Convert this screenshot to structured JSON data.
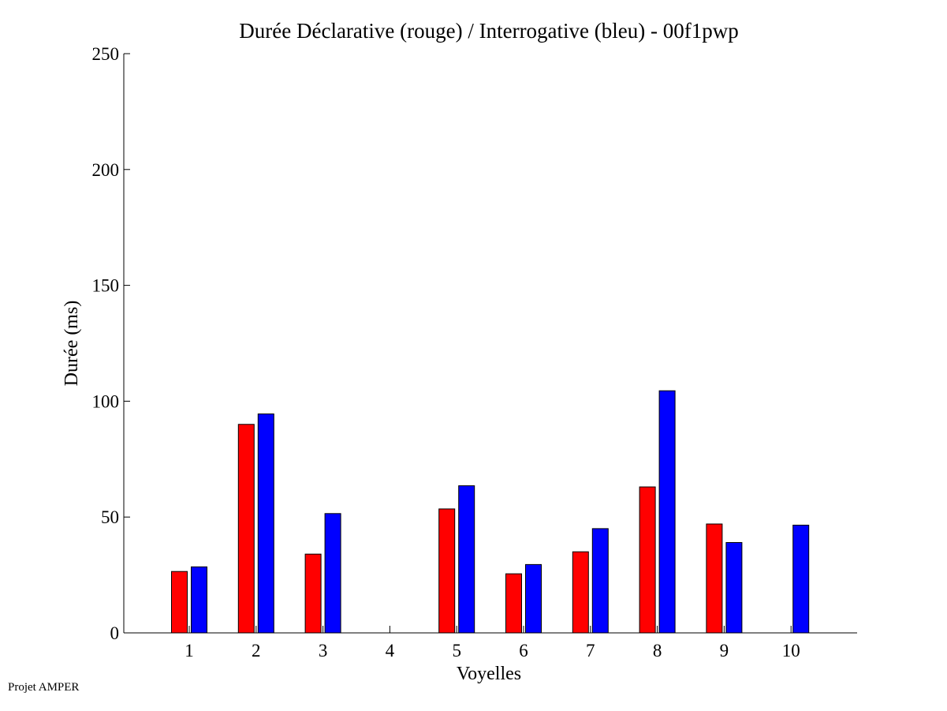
{
  "footer": {
    "text": "Projet AMPER"
  },
  "chart_data": {
    "type": "bar",
    "title": "Durée Déclarative (rouge) / Interrogative (bleu) - 00f1pwp",
    "xlabel": "Voyelles",
    "ylabel": "Durée (ms)",
    "ylim": [
      0,
      250
    ],
    "yticks": [
      0,
      50,
      100,
      150,
      200,
      250
    ],
    "categories": [
      "1",
      "2",
      "3",
      "4",
      "5",
      "6",
      "7",
      "8",
      "9",
      "10"
    ],
    "series": [
      {
        "name": "Déclarative",
        "color": "#ff0000",
        "values": [
          26.5,
          90,
          34,
          0,
          53.5,
          25.5,
          35,
          63,
          47,
          0
        ]
      },
      {
        "name": "Interrogative",
        "color": "#0000ff",
        "values": [
          28.5,
          94.5,
          51.5,
          0,
          63.5,
          29.5,
          45,
          104.5,
          39,
          46.5
        ]
      }
    ]
  }
}
